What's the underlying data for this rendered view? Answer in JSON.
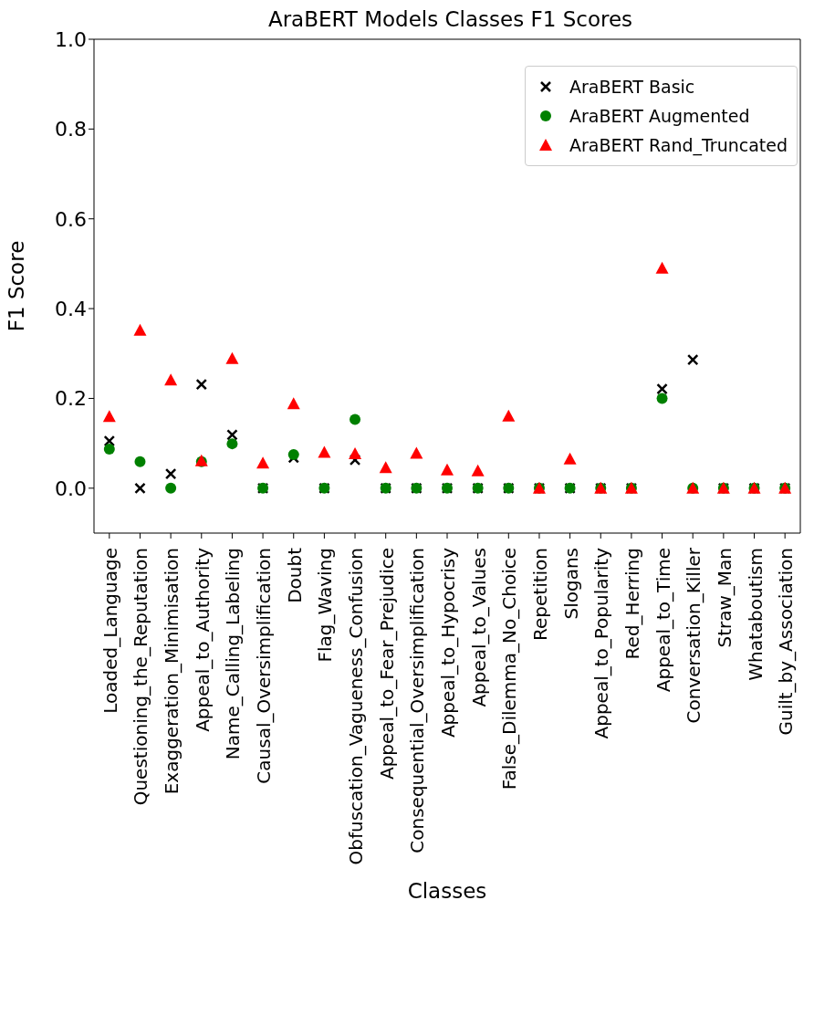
{
  "chart_data": {
    "type": "scatter",
    "title": "AraBERT Models Classes F1 Scores",
    "xlabel": "Classes",
    "ylabel": "F1 Score",
    "categories": [
      "Loaded_Language",
      "Questioning_the_Reputation",
      "Exaggeration_Minimisation",
      "Appeal_to_Authority",
      "Name_Calling_Labeling",
      "Causal_Oversimplification",
      "Doubt",
      "Flag_Waving",
      "Obfuscation_Vagueness_Confusion",
      "Appeal_to_Fear_Prejudice",
      "Consequential_Oversimplification",
      "Appeal_to_Hypocrisy",
      "Appeal_to_Values",
      "False_Dilemma_No_Choice",
      "Repetition",
      "Slogans",
      "Appeal_to_Popularity",
      "Red_Herring",
      "Appeal_to_Time",
      "Conversation_Killer",
      "Straw_Man",
      "Whataboutism",
      "Guilt_by_Association"
    ],
    "series": [
      {
        "name": "AraBERT Basic",
        "color": "#000000",
        "marker": "cross",
        "values": [
          0.105,
          0,
          0.032,
          0.231,
          0.119,
          0,
          0.068,
          0,
          0.063,
          0,
          0,
          0,
          0,
          0,
          0,
          0,
          0,
          0,
          0.221,
          0.286,
          0,
          0,
          0
        ]
      },
      {
        "name": "AraBERT Augmented",
        "color": "#008000",
        "marker": "circle",
        "values": [
          0.087,
          0.059,
          0,
          0.059,
          0.099,
          0,
          0.075,
          0,
          0.153,
          0,
          0,
          0,
          0,
          0,
          0,
          0,
          0,
          0,
          0.2,
          0,
          0,
          0,
          0
        ]
      },
      {
        "name": "AraBERT Rand_Truncated",
        "color": "#ff0000",
        "marker": "triangle",
        "values": [
          0.16,
          0.352,
          0.241,
          0.061,
          0.289,
          0.056,
          0.188,
          0.08,
          0.077,
          0.046,
          0.078,
          0.041,
          0.039,
          0.161,
          0,
          0.065,
          0,
          0,
          0.49,
          0,
          0,
          0,
          0
        ]
      }
    ],
    "ylim": [
      -0.1,
      1.0
    ],
    "yticks": [
      {
        "value": 0,
        "label": "0.0"
      },
      {
        "value": 0.2,
        "label": "0.2"
      },
      {
        "value": 0.4,
        "label": "0.4"
      },
      {
        "value": 0.6,
        "label": "0.6"
      },
      {
        "value": 0.8,
        "label": "0.8"
      },
      {
        "value": 1.0,
        "label": "1.0"
      }
    ],
    "grid": false,
    "legend": "top right"
  }
}
